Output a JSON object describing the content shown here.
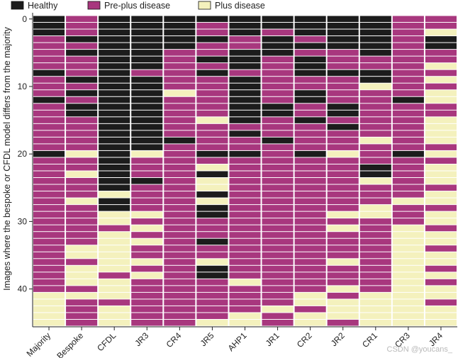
{
  "colors": {
    "healthy": "#1c1c1c",
    "pre_plus": "#a8377e",
    "plus": "#f4f1bd",
    "grid": "#ffffff",
    "axis": "#222222"
  },
  "watermark": "CSDN @youcans_",
  "chart_data": {
    "type": "heatmap",
    "title": "",
    "ylabel": "Images where the bespoke or CFDL model differs from the majority",
    "xlabel": "",
    "legend_position": "top-left",
    "legend": [
      {
        "key": "H",
        "label": "Healthy"
      },
      {
        "key": "P",
        "label": "Pre-plus disease"
      },
      {
        "key": "L",
        "label": "Plus disease"
      }
    ],
    "y_ticks": [
      0,
      10,
      20,
      30,
      40
    ],
    "y_range": [
      0,
      45
    ],
    "n_images": 46,
    "columns": [
      "Majority",
      "Bespoke",
      "CFDL",
      "JR3",
      "CR4",
      "JR5",
      "AHP1",
      "JR1",
      "CR2",
      "JR2",
      "CR1",
      "CR3",
      "JR4"
    ],
    "data": [
      [
        "H",
        "P",
        "H",
        "H",
        "H",
        "H",
        "H",
        "H",
        "H",
        "H",
        "H",
        "P",
        "P"
      ],
      [
        "H",
        "P",
        "H",
        "H",
        "H",
        "P",
        "H",
        "H",
        "H",
        "H",
        "H",
        "P",
        "P"
      ],
      [
        "H",
        "P",
        "H",
        "H",
        "H",
        "P",
        "H",
        "P",
        "H",
        "H",
        "H",
        "P",
        "L"
      ],
      [
        "P",
        "H",
        "H",
        "H",
        "H",
        "H",
        "P",
        "H",
        "P",
        "H",
        "H",
        "P",
        "H"
      ],
      [
        "P",
        "P",
        "H",
        "H",
        "H",
        "P",
        "P",
        "H",
        "H",
        "H",
        "H",
        "P",
        "H"
      ],
      [
        "P",
        "H",
        "H",
        "H",
        "P",
        "P",
        "H",
        "H",
        "P",
        "P",
        "H",
        "P",
        "P"
      ],
      [
        "P",
        "P",
        "H",
        "H",
        "P",
        "H",
        "H",
        "P",
        "H",
        "P",
        "P",
        "P",
        "P"
      ],
      [
        "P",
        "P",
        "H",
        "H",
        "P",
        "P",
        "H",
        "P",
        "H",
        "P",
        "P",
        "P",
        "L"
      ],
      [
        "H",
        "P",
        "H",
        "P",
        "P",
        "H",
        "P",
        "P",
        "H",
        "H",
        "H",
        "P",
        "P"
      ],
      [
        "P",
        "H",
        "H",
        "H",
        "P",
        "P",
        "H",
        "P",
        "P",
        "P",
        "H",
        "P",
        "L"
      ],
      [
        "P",
        "P",
        "H",
        "H",
        "P",
        "P",
        "H",
        "P",
        "P",
        "P",
        "L",
        "P",
        "P"
      ],
      [
        "P",
        "H",
        "H",
        "H",
        "L",
        "P",
        "H",
        "P",
        "H",
        "P",
        "P",
        "P",
        "L"
      ],
      [
        "H",
        "P",
        "H",
        "H",
        "P",
        "P",
        "H",
        "P",
        "H",
        "P",
        "P",
        "H",
        "L"
      ],
      [
        "P",
        "H",
        "H",
        "H",
        "P",
        "P",
        "H",
        "H",
        "P",
        "H",
        "P",
        "P",
        "P"
      ],
      [
        "P",
        "H",
        "H",
        "H",
        "P",
        "P",
        "H",
        "H",
        "P",
        "H",
        "P",
        "P",
        "P"
      ],
      [
        "P",
        "P",
        "H",
        "H",
        "P",
        "L",
        "H",
        "P",
        "H",
        "P",
        "P",
        "P",
        "L"
      ],
      [
        "P",
        "P",
        "H",
        "H",
        "P",
        "P",
        "P",
        "P",
        "P",
        "H",
        "P",
        "P",
        "L"
      ],
      [
        "P",
        "P",
        "H",
        "H",
        "P",
        "P",
        "H",
        "P",
        "P",
        "P",
        "P",
        "P",
        "L"
      ],
      [
        "P",
        "P",
        "H",
        "H",
        "H",
        "P",
        "P",
        "H",
        "P",
        "P",
        "L",
        "P",
        "L"
      ],
      [
        "P",
        "P",
        "H",
        "H",
        "P",
        "P",
        "P",
        "P",
        "P",
        "P",
        "P",
        "P",
        "P"
      ],
      [
        "H",
        "L",
        "H",
        "L",
        "P",
        "H",
        "H",
        "P",
        "H",
        "L",
        "P",
        "H",
        "L"
      ],
      [
        "P",
        "P",
        "H",
        "P",
        "P",
        "P",
        "P",
        "P",
        "P",
        "P",
        "P",
        "P",
        "P"
      ],
      [
        "P",
        "P",
        "H",
        "P",
        "P",
        "L",
        "P",
        "P",
        "P",
        "P",
        "H",
        "P",
        "L"
      ],
      [
        "P",
        "L",
        "H",
        "P",
        "P",
        "H",
        "P",
        "P",
        "P",
        "P",
        "H",
        "P",
        "L"
      ],
      [
        "P",
        "P",
        "H",
        "H",
        "P",
        "L",
        "P",
        "P",
        "P",
        "P",
        "L",
        "P",
        "L"
      ],
      [
        "P",
        "P",
        "H",
        "P",
        "P",
        "L",
        "P",
        "P",
        "P",
        "P",
        "P",
        "P",
        "P"
      ],
      [
        "P",
        "P",
        "L",
        "P",
        "P",
        "H",
        "P",
        "P",
        "P",
        "P",
        "P",
        "P",
        "L"
      ],
      [
        "P",
        "L",
        "H",
        "P",
        "P",
        "L",
        "P",
        "P",
        "P",
        "P",
        "P",
        "L",
        "L"
      ],
      [
        "P",
        "P",
        "H",
        "P",
        "P",
        "H",
        "P",
        "P",
        "P",
        "P",
        "L",
        "P",
        "P"
      ],
      [
        "P",
        "P",
        "L",
        "L",
        "P",
        "H",
        "P",
        "P",
        "P",
        "L",
        "L",
        "P",
        "L"
      ],
      [
        "P",
        "P",
        "L",
        "P",
        "P",
        "P",
        "P",
        "P",
        "P",
        "P",
        "P",
        "P",
        "L"
      ],
      [
        "P",
        "P",
        "P",
        "L",
        "P",
        "P",
        "P",
        "P",
        "P",
        "L",
        "P",
        "L",
        "P"
      ],
      [
        "P",
        "P",
        "L",
        "P",
        "P",
        "P",
        "P",
        "P",
        "P",
        "P",
        "P",
        "L",
        "L"
      ],
      [
        "P",
        "P",
        "L",
        "L",
        "P",
        "H",
        "P",
        "P",
        "P",
        "P",
        "P",
        "L",
        "L"
      ],
      [
        "P",
        "L",
        "L",
        "P",
        "P",
        "P",
        "P",
        "P",
        "P",
        "P",
        "P",
        "L",
        "P"
      ],
      [
        "P",
        "L",
        "L",
        "P",
        "P",
        "P",
        "P",
        "P",
        "P",
        "P",
        "P",
        "L",
        "L"
      ],
      [
        "P",
        "P",
        "L",
        "L",
        "P",
        "L",
        "P",
        "P",
        "P",
        "L",
        "P",
        "L",
        "L"
      ],
      [
        "P",
        "L",
        "L",
        "P",
        "P",
        "H",
        "P",
        "P",
        "P",
        "P",
        "P",
        "L",
        "P"
      ],
      [
        "P",
        "L",
        "P",
        "L",
        "P",
        "H",
        "P",
        "P",
        "P",
        "P",
        "P",
        "L",
        "L"
      ],
      [
        "P",
        "L",
        "L",
        "P",
        "P",
        "P",
        "L",
        "P",
        "P",
        "P",
        "P",
        "L",
        "P"
      ],
      [
        "P",
        "P",
        "L",
        "P",
        "P",
        "P",
        "P",
        "P",
        "P",
        "L",
        "P",
        "L",
        "L"
      ],
      [
        "L",
        "L",
        "L",
        "P",
        "P",
        "P",
        "P",
        "P",
        "L",
        "P",
        "L",
        "L",
        "L"
      ],
      [
        "L",
        "P",
        "P",
        "P",
        "P",
        "P",
        "P",
        "P",
        "L",
        "L",
        "L",
        "L",
        "P"
      ],
      [
        "L",
        "P",
        "L",
        "P",
        "P",
        "P",
        "P",
        "L",
        "P",
        "L",
        "L",
        "L",
        "L"
      ],
      [
        "L",
        "P",
        "L",
        "P",
        "P",
        "P",
        "L",
        "P",
        "L",
        "L",
        "L",
        "L",
        "L"
      ],
      [
        "L",
        "P",
        "L",
        "P",
        "P",
        "L",
        "L",
        "P",
        "L",
        "P",
        "L",
        "L",
        "L"
      ]
    ]
  }
}
